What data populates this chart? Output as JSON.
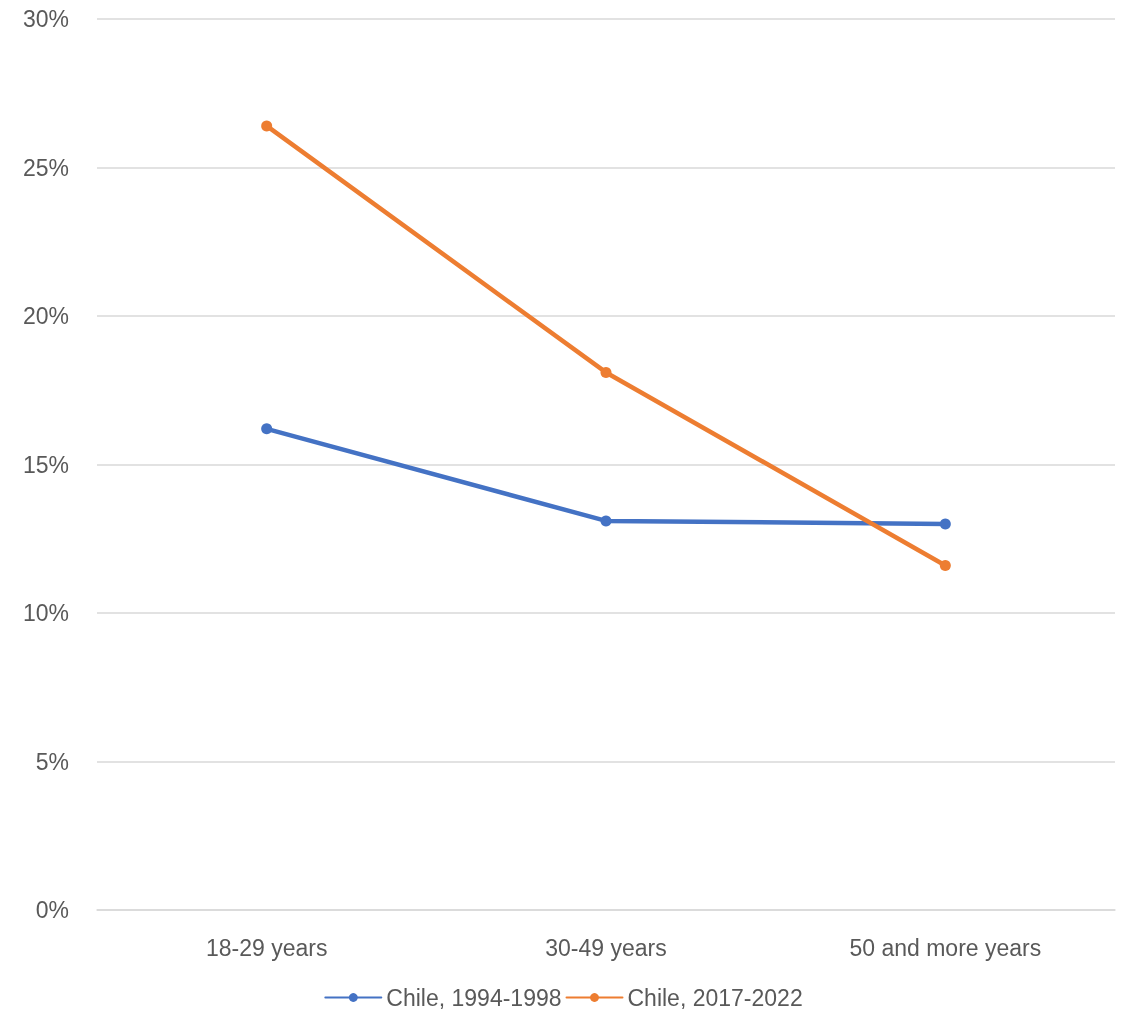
{
  "chart_data": {
    "type": "line",
    "categories": [
      "18-29 years",
      "30-49 years",
      "50 and more years"
    ],
    "series": [
      {
        "name": "Chile, 1994-1998",
        "color": "#4472c4",
        "values": [
          16.2,
          13.1,
          13.0
        ]
      },
      {
        "name": "Chile, 2017-2022",
        "color": "#ed7d31",
        "values": [
          26.4,
          18.1,
          11.6
        ]
      }
    ],
    "ylim": [
      0,
      30
    ],
    "yticks": [
      {
        "value": 0,
        "label": "0%"
      },
      {
        "value": 5,
        "label": "5%"
      },
      {
        "value": 10,
        "label": "10%"
      },
      {
        "value": 15,
        "label": "15%"
      },
      {
        "value": 20,
        "label": "20%"
      },
      {
        "value": 25,
        "label": "25%"
      },
      {
        "value": 30,
        "label": "30%"
      }
    ],
    "grid": "y",
    "legend": "bottom",
    "marker": "circle",
    "line_style": "solid"
  }
}
